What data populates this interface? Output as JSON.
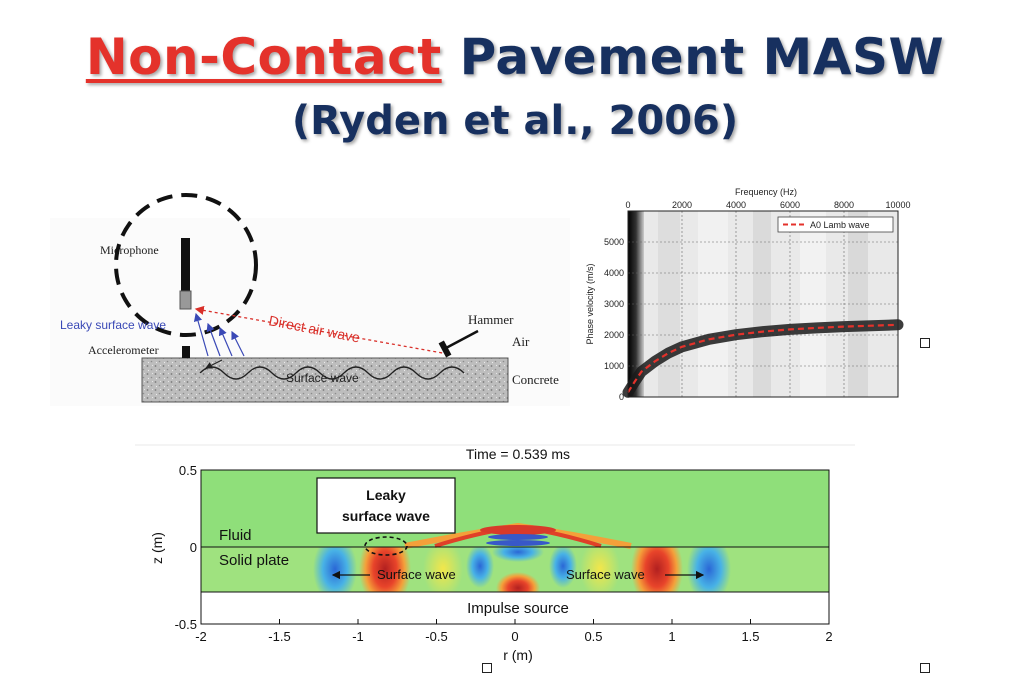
{
  "title": {
    "line1_highlight": "Non-Contact",
    "line1_rest": " Pavement MASW",
    "line2": "(Ryden et al., 2006)"
  },
  "schematic": {
    "labels": {
      "microphone": "Microphone",
      "leaky_wave": "Leaky surface wave",
      "direct_air": "Direct air wave",
      "hammer": "Hammer",
      "air": "Air",
      "accelerometer": "Accelerometer",
      "surface_wave": "Surface wave",
      "concrete": "Concrete"
    }
  },
  "dispersion_plot": {
    "top_axis_label": "Frequency (Hz)",
    "top_ticks": [
      "0",
      "2000",
      "4000",
      "6000",
      "8000",
      "10000"
    ],
    "y_axis_label": "Phase velocity (m/s)",
    "y_ticks": [
      "0",
      "1000",
      "2000",
      "3000",
      "4000",
      "5000"
    ],
    "legend": "A0 Lamb wave",
    "colors": {
      "curve": "#e4322b"
    }
  },
  "simulation": {
    "title": "Time = 0.539 ms",
    "xlabel": "r (m)",
    "ylabel": "z (m)",
    "x_ticks": [
      "-2",
      "-1.5",
      "-1",
      "-0.5",
      "0",
      "0.5",
      "1",
      "1.5",
      "2"
    ],
    "y_ticks": [
      "0.5",
      "0",
      "-0.5"
    ],
    "labels": {
      "leaky_line1": "Leaky",
      "leaky_line2": "surface wave",
      "fluid": "Fluid",
      "solid": "Solid plate",
      "surface_left": "Surface wave",
      "surface_right": "Surface wave",
      "impulse": "Impulse source"
    }
  },
  "chart_data": {
    "type": "line",
    "title": "",
    "xlabel": "Frequency (Hz)",
    "ylabel": "Phase velocity (m/s)",
    "xlim": [
      0,
      10000
    ],
    "ylim": [
      0,
      6000
    ],
    "grid": true,
    "legend_position": "top-right",
    "series": [
      {
        "name": "A0 Lamb wave",
        "x": [
          0,
          250,
          500,
          1000,
          1500,
          2000,
          3000,
          4000,
          5000,
          6000,
          7000,
          8000,
          9000,
          10000
        ],
        "values": [
          150,
          500,
          820,
          1150,
          1420,
          1620,
          1860,
          2010,
          2110,
          2180,
          2230,
          2270,
          2300,
          2330
        ]
      }
    ]
  }
}
